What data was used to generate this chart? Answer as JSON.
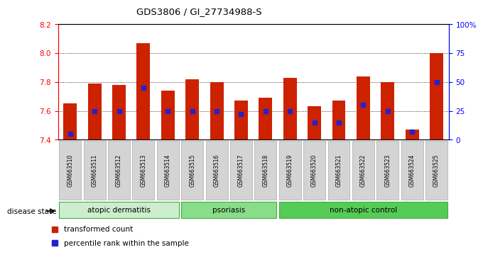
{
  "title": "GDS3806 / GI_27734988-S",
  "samples": [
    "GSM663510",
    "GSM663511",
    "GSM663512",
    "GSM663513",
    "GSM663514",
    "GSM663515",
    "GSM663516",
    "GSM663517",
    "GSM663518",
    "GSM663519",
    "GSM663520",
    "GSM663521",
    "GSM663522",
    "GSM663523",
    "GSM663524",
    "GSM663525"
  ],
  "red_values": [
    7.65,
    7.79,
    7.78,
    8.07,
    7.74,
    7.82,
    7.8,
    7.67,
    7.69,
    7.83,
    7.63,
    7.67,
    7.84,
    7.8,
    7.47,
    8.0
  ],
  "blue_percentiles": [
    5,
    25,
    25,
    45,
    25,
    25,
    25,
    22,
    25,
    25,
    15,
    15,
    30,
    25,
    7,
    50
  ],
  "ymin": 7.4,
  "ymax": 8.2,
  "right_yticks": [
    0,
    25,
    50,
    75,
    100
  ],
  "right_yticklabels": [
    "0",
    "25",
    "50",
    "75",
    "100%"
  ],
  "left_yticks": [
    7.4,
    7.6,
    7.8,
    8.0,
    8.2
  ],
  "grid_lines": [
    7.6,
    7.8,
    8.0
  ],
  "bar_color": "#cc2200",
  "dot_color": "#2222cc",
  "groups": [
    {
      "label": "atopic dermatitis",
      "start": 0,
      "end": 4,
      "color": "#cceecc"
    },
    {
      "label": "psoriasis",
      "start": 5,
      "end": 8,
      "color": "#88dd88"
    },
    {
      "label": "non-atopic control",
      "start": 9,
      "end": 15,
      "color": "#55cc55"
    }
  ],
  "disease_state_label": "disease state",
  "legend_red": "transformed count",
  "legend_blue": "percentile rank within the sample",
  "bg_color": "#ffffff",
  "label_bg_color": "#d4d4d4",
  "label_edge_color": "#aaaaaa"
}
